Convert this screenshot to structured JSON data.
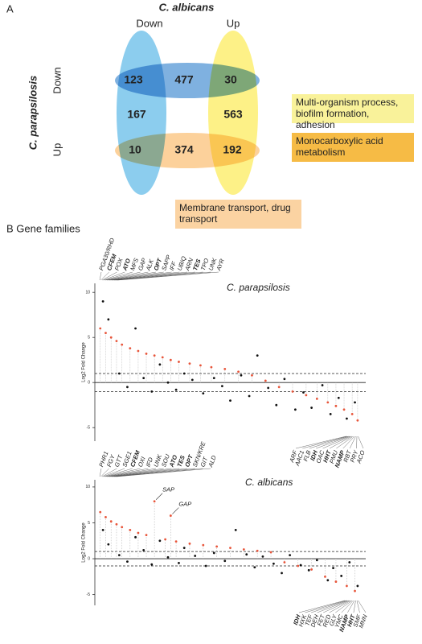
{
  "venn": {
    "panel_label": "A",
    "top_title": "C. albicans",
    "col_labels": [
      "Down",
      "Up"
    ],
    "side_title": "C. parapsilosis",
    "row_labels": [
      "Down",
      "Up"
    ],
    "counts": [
      [
        "123",
        "477",
        "30"
      ],
      [
        "167",
        "563"
      ],
      [
        "10",
        "374",
        "192"
      ]
    ],
    "notes": [
      "Multi-organism process, biofilm formation, adhesion",
      "Monocarboxylic acid metabolism",
      "Membrane transport, drug transport"
    ]
  },
  "gene_families": {
    "panel_label": "B Gene families",
    "panels": [
      {
        "title": "C. parapsilosis",
        "y_label": "Log2 Fold Change",
        "ylim": [
          -6.5,
          11
        ],
        "xlim": [
          0,
          100
        ],
        "yticks": [
          10,
          5,
          0,
          -5
        ],
        "thresholds": [
          1,
          -1
        ],
        "top_labels": [
          {
            "text": "PGA30/RHD"
          },
          {
            "text": "CFEM",
            "bold": true
          },
          {
            "text": "POX"
          },
          {
            "text": "ATO",
            "bold": true
          },
          {
            "text": "MFS"
          },
          {
            "text": "GAP"
          },
          {
            "text": "ALK"
          },
          {
            "text": "OPT",
            "bold": true
          },
          {
            "text": "SAPP"
          },
          {
            "text": "IFF"
          },
          {
            "text": "UBIQ"
          },
          {
            "text": "ARN"
          },
          {
            "text": "TES",
            "bold": true
          },
          {
            "text": "TPO"
          },
          {
            "text": "UNK"
          },
          {
            "text": "AYR"
          }
        ],
        "bottom_labels": [
          {
            "text": "ARF"
          },
          {
            "text": "AAC1"
          },
          {
            "text": "FLB"
          },
          {
            "text": "IDH",
            "bold": true
          },
          {
            "text": "OAC"
          },
          {
            "text": "HHT",
            "bold": true
          },
          {
            "text": "PMU"
          },
          {
            "text": "NAMP",
            "bold": true
          },
          {
            "text": "RBT"
          },
          {
            "text": "PRY"
          },
          {
            "text": "ACO"
          }
        ],
        "annotations": [],
        "series": [
          {
            "color": "#e8553a",
            "x": [
              2,
              4,
              6,
              8,
              10,
              13,
              16,
              19,
              22,
              25,
              28,
              31,
              35,
              39,
              43,
              48,
              53,
              58,
              63,
              68,
              73,
              78,
              82,
              86,
              89,
              92,
              95,
              97
            ],
            "values": [
              6,
              5.5,
              5,
              4.6,
              4.2,
              3.8,
              3.5,
              3.2,
              3,
              2.8,
              2.5,
              2.3,
              2.1,
              1.9,
              1.7,
              1.5,
              1.2,
              0.8,
              0.2,
              -0.5,
              -1,
              -1.4,
              -1.8,
              -2.2,
              -2.6,
              -3,
              -3.5,
              -4.2
            ]
          },
          {
            "color": "#111111",
            "x": [
              3,
              5,
              9,
              12,
              15,
              18,
              21,
              24,
              27,
              30,
              33,
              36,
              40,
              44,
              47,
              50,
              54,
              57,
              60,
              64,
              67,
              70,
              74,
              77,
              80,
              84,
              87,
              90,
              93,
              96
            ],
            "values": [
              9,
              7,
              1,
              -0.5,
              6,
              0.5,
              -1,
              2,
              0,
              -0.8,
              1,
              0.3,
              -1.2,
              0.5,
              -0.4,
              -2,
              0.8,
              -1.5,
              3,
              -0.6,
              -2.5,
              0.4,
              -3,
              -1.1,
              -2.8,
              -0.3,
              -3.5,
              -1.7,
              -4,
              -2.2
            ]
          }
        ]
      },
      {
        "title": "C. albicans",
        "y_label": "Log2 Fold Change",
        "ylim": [
          -6.5,
          11
        ],
        "xlim": [
          0,
          100
        ],
        "yticks": [
          10,
          5,
          0,
          -5
        ],
        "thresholds": [
          1,
          -1
        ],
        "top_labels": [
          {
            "text": "PHR1"
          },
          {
            "text": "FGY"
          },
          {
            "text": "GTT"
          },
          {
            "text": "SGE1"
          },
          {
            "text": "CFEM",
            "bold": true
          },
          {
            "text": "OXI"
          },
          {
            "text": "IFD"
          },
          {
            "text": "UNK"
          },
          {
            "text": "SOU"
          },
          {
            "text": "ATO",
            "bold": true
          },
          {
            "text": "TES",
            "bold": true
          },
          {
            "text": "OPT",
            "bold": true
          },
          {
            "text": "SKN/KRE"
          },
          {
            "text": "GIT"
          },
          {
            "text": "ALD"
          }
        ],
        "bottom_labels": [
          {
            "text": "IDH",
            "bold": true
          },
          {
            "text": "HXK"
          },
          {
            "text": "TEF"
          },
          {
            "text": "DEH"
          },
          {
            "text": "FET"
          },
          {
            "text": "RED"
          },
          {
            "text": "GLY"
          },
          {
            "text": "YMC"
          },
          {
            "text": "NAMP",
            "bold": true
          },
          {
            "text": "HHT",
            "bold": true
          },
          {
            "text": "SMF"
          },
          {
            "text": "MNN"
          }
        ],
        "annotations": [
          {
            "text": "SAP",
            "x": 22,
            "y": 8
          },
          {
            "text": "GAP",
            "x": 28,
            "y": 6
          }
        ],
        "series": [
          {
            "color": "#e8553a",
            "x": [
              2,
              4,
              6,
              8,
              10,
              13,
              16,
              19,
              22,
              26,
              28,
              30,
              35,
              40,
              45,
              50,
              55,
              60,
              65,
              70,
              75,
              80,
              85,
              89,
              93,
              96
            ],
            "values": [
              6.5,
              5.8,
              5.2,
              4.8,
              4.4,
              4,
              3.6,
              3.3,
              8,
              2.7,
              6,
              2.4,
              2.1,
              1.9,
              1.7,
              1.5,
              1.3,
              1.1,
              0.9,
              -0.5,
              -1,
              -1.5,
              -2.5,
              -3.2,
              -3.8,
              -4.5
            ]
          },
          {
            "color": "#111111",
            "x": [
              3,
              5,
              9,
              12,
              15,
              18,
              21,
              24,
              27,
              31,
              33,
              37,
              41,
              44,
              48,
              52,
              56,
              59,
              62,
              66,
              69,
              72,
              76,
              79,
              82,
              86,
              88,
              91,
              94,
              97
            ],
            "values": [
              4,
              2,
              0.5,
              -0.4,
              3,
              1.2,
              -0.8,
              2.5,
              0.2,
              -0.6,
              1.5,
              0.4,
              -1,
              0.8,
              -0.3,
              4,
              0.6,
              -1.2,
              0.3,
              -0.7,
              -2,
              0.5,
              -0.9,
              -1.6,
              -0.2,
              -3,
              -1.3,
              -2.4,
              -0.5,
              -3.8
            ]
          }
        ]
      }
    ]
  }
}
